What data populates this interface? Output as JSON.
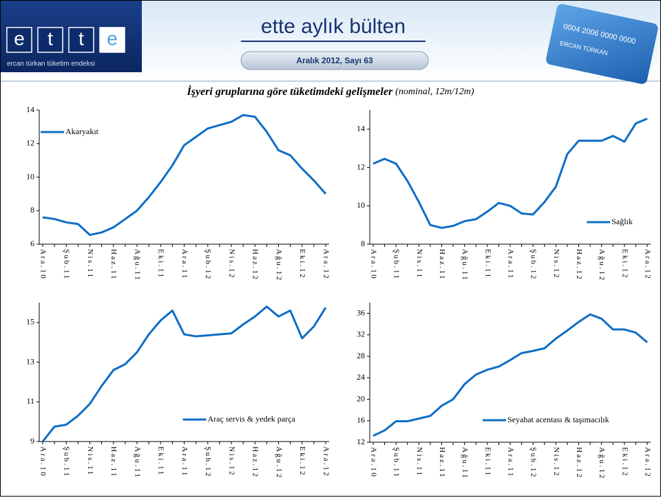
{
  "header": {
    "logo_letters": [
      "e",
      "t",
      "t",
      "e"
    ],
    "tagline": "ercan türkan tüketim endeksi",
    "title": "ette aylık bülten",
    "subtitle": "Aralık 2012, Sayı 63",
    "card_number": "0004 2006 0000 0000",
    "card_name": "ERCAN TÜRKAN"
  },
  "page_title": "İşyeri gruplarına göre tüketimdeki gelişmeler",
  "page_subtitle": "(nominal, 12m/12m)",
  "chart_data": [
    {
      "type": "line",
      "legend": "top-left",
      "categories": [
        "Ara.10",
        null,
        "Şub.11",
        null,
        "Nis.11",
        null,
        "Haz.11",
        null,
        "Ağu.11",
        null,
        "Eki.11",
        null,
        "Ara.11",
        null,
        "Şub.12",
        null,
        "Nis.12",
        null,
        "Haz.12",
        null,
        "Ağu.12",
        null,
        "Eki.12",
        null,
        "Ara.12"
      ],
      "series": [
        {
          "name": "Akaryakıt",
          "color": "#0e6dc6",
          "values": [
            7.6,
            7.5,
            7.3,
            7.2,
            6.55,
            6.7,
            7.0,
            7.5,
            8.0,
            8.8,
            9.7,
            10.7,
            11.9,
            12.4,
            12.9,
            13.1,
            13.3,
            13.7,
            13.6,
            12.7,
            11.6,
            11.3,
            10.5,
            9.8,
            9.0
          ]
        }
      ],
      "ylim": [
        6,
        14
      ],
      "yticks": [
        6,
        8,
        10,
        12,
        14
      ]
    },
    {
      "type": "line",
      "legend": "bottom-right",
      "categories": [
        "Ara.10",
        null,
        "Şub.11",
        null,
        "Nis.11",
        null,
        "Haz.11",
        null,
        "Ağu.11",
        null,
        "Eki.11",
        null,
        "Ara.11",
        null,
        "Şub.12",
        null,
        "Nis.12",
        null,
        "Haz.12",
        null,
        "Ağu.12",
        null,
        "Eki.12",
        null,
        "Ara.12"
      ],
      "series": [
        {
          "name": "Sağlık",
          "color": "#0e6dc6",
          "values": [
            12.2,
            12.45,
            12.2,
            11.3,
            10.2,
            9.0,
            8.85,
            8.95,
            9.2,
            9.3,
            9.7,
            10.15,
            10.0,
            9.6,
            9.55,
            10.2,
            11.0,
            12.7,
            13.4,
            13.4,
            13.4,
            13.65,
            13.35,
            14.3,
            14.55
          ]
        }
      ],
      "ylim": [
        8,
        15
      ],
      "yticks": [
        8,
        10,
        12,
        14
      ]
    },
    {
      "type": "line",
      "legend": "bottom-right",
      "categories": [
        "Ara.10",
        null,
        "Şub.11",
        null,
        "Nis.11",
        null,
        "Haz.11",
        null,
        "Ağu.11",
        null,
        "Eki.11",
        null,
        "Ara.11",
        null,
        "Şub.12",
        null,
        "Nis.12",
        null,
        "Haz.12",
        null,
        "Ağu.12",
        null,
        "Eki.12",
        null,
        "Ara.12"
      ],
      "series": [
        {
          "name": "Araç servis & yedek parça",
          "color": "#0e6dc6",
          "values": [
            9.0,
            9.75,
            9.85,
            10.3,
            10.9,
            11.8,
            12.6,
            12.9,
            13.5,
            14.4,
            15.1,
            15.6,
            14.4,
            14.3,
            14.35,
            14.4,
            14.45,
            14.9,
            15.3,
            15.8,
            15.3,
            15.6,
            14.2,
            14.8,
            15.75
          ]
        }
      ],
      "ylim": [
        9,
        16
      ],
      "yticks": [
        9,
        11,
        13,
        15
      ]
    },
    {
      "type": "line",
      "legend": "bottom-right",
      "categories": [
        "Ara.10",
        null,
        "Şub.11",
        null,
        "Nis.11",
        null,
        "Haz.11",
        null,
        "Ağu.11",
        null,
        "Eki.11",
        null,
        "Ara.11",
        null,
        "Şub.12",
        null,
        "Nis.12",
        null,
        "Haz.12",
        null,
        "Ağu.12",
        null,
        "Eki.12",
        null,
        "Ara.12"
      ],
      "series": [
        {
          "name": "Seyahat acentası & taşımacılık",
          "color": "#0e6dc6",
          "values": [
            13.2,
            14.2,
            15.9,
            15.9,
            16.4,
            16.9,
            18.8,
            20.0,
            22.8,
            24.6,
            25.5,
            26.1,
            27.3,
            28.6,
            29.0,
            29.5,
            31.3,
            32.8,
            34.4,
            35.8,
            35.0,
            33.0,
            33.0,
            32.4,
            30.6
          ]
        }
      ],
      "ylim": [
        12,
        38
      ],
      "yticks": [
        12,
        16,
        20,
        24,
        28,
        32,
        36
      ]
    }
  ]
}
